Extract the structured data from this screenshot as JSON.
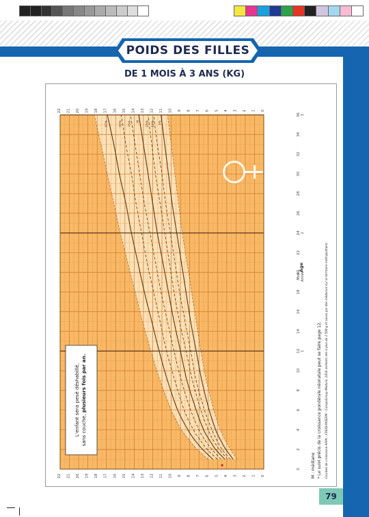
{
  "header": {
    "title": "POIDS DES FILLES",
    "subtitle": "DE 1 MOIS À 3 ANS (KG)",
    "colors": {
      "blue": "#1565b0",
      "navy": "#1d2a52",
      "chart_bg": "#f9b865",
      "curve_band": "#fde7c6",
      "teal": "#7ec9b5"
    }
  },
  "color_strips": {
    "left": [
      "#222222",
      "#222222",
      "#333333",
      "#555555",
      "#777777",
      "#888888",
      "#999999",
      "#aaaaaa",
      "#bbbbbb",
      "#cccccc",
      "#dddddd",
      "#ffffff"
    ],
    "right": [
      "#f5e642",
      "#e8358f",
      "#1aa0dc",
      "#1f3b94",
      "#2ca24a",
      "#e53524",
      "#222222",
      "#d1c6e0",
      "#a5d6ef",
      "#f7bcd4",
      "#ffffff"
    ]
  },
  "chart": {
    "note_line1": "L'enfant sera pesé déshabillé,",
    "note_line2_plain": "sans couche, ",
    "note_line2_bold": "plusieurs fois par an.",
    "legend_median": "M : médiane",
    "legend_footnote": "* Le suivi précis de la croissance pondérale néonatale peut se faire page 12.",
    "source": "Courbes de croissance AFPA – CRESS/INSERM – CompuGroup Medical, 2018 (enfants nés à plus de 2 500 g et suivis par des médecins sur le territoire métropolitain).",
    "axis_label": "Âge",
    "axis_sub_mois": "Mois",
    "axis_sub_annee": "Année",
    "female_symbol": "female-symbol"
  },
  "chart_data": {
    "type": "line",
    "x_label": "Âge",
    "x_unit_primary": "Mois",
    "x_unit_secondary": "Année",
    "y_label": "",
    "x_ticks": [
      0,
      2,
      4,
      6,
      8,
      10,
      12,
      14,
      16,
      18,
      20,
      22,
      24,
      26,
      28,
      30,
      32,
      34,
      36
    ],
    "x_year_ticks": [
      {
        "month": 12,
        "label": "1"
      },
      {
        "month": 24,
        "label": "2"
      },
      {
        "month": 36,
        "label": "3"
      }
    ],
    "y_ticks": [
      0,
      1,
      2,
      3,
      4,
      5,
      6,
      7,
      8,
      9,
      10,
      11,
      12,
      13,
      14,
      15,
      16,
      17,
      18,
      19,
      20,
      21,
      22
    ],
    "xlim": [
      0,
      36
    ],
    "ylim": [
      0,
      22
    ],
    "x": [
      1,
      2,
      3,
      4,
      6,
      9,
      12,
      15,
      18,
      21,
      24,
      27,
      30,
      33,
      36
    ],
    "series": [
      {
        "name": "3%",
        "values": [
          3.3,
          4.1,
          4.7,
          5.2,
          5.9,
          6.7,
          7.3,
          7.9,
          8.4,
          8.9,
          9.4,
          9.9,
          10.3,
          10.7,
          11.1
        ]
      },
      {
        "name": "10%",
        "values": [
          3.6,
          4.5,
          5.1,
          5.6,
          6.4,
          7.3,
          7.9,
          8.5,
          9.1,
          9.6,
          10.1,
          10.6,
          11.0,
          11.5,
          11.9
        ]
      },
      {
        "name": "25%",
        "values": [
          3.9,
          4.8,
          5.5,
          6.0,
          6.8,
          7.7,
          8.4,
          9.1,
          9.7,
          10.2,
          10.7,
          11.2,
          11.7,
          12.1,
          12.5
        ]
      },
      {
        "name": "M",
        "values": [
          4.2,
          5.2,
          5.9,
          6.5,
          7.3,
          8.3,
          9.0,
          9.7,
          10.3,
          10.9,
          11.5,
          12.0,
          12.5,
          13.0,
          13.5
        ]
      },
      {
        "name": "75%",
        "values": [
          4.6,
          5.6,
          6.4,
          7.0,
          7.9,
          8.9,
          9.7,
          10.4,
          11.1,
          11.7,
          12.3,
          12.9,
          13.4,
          13.9,
          14.4
        ]
      },
      {
        "name": "90%",
        "values": [
          5.0,
          6.1,
          6.9,
          7.6,
          8.6,
          9.6,
          10.5,
          11.2,
          11.9,
          12.6,
          13.2,
          13.8,
          14.3,
          14.9,
          15.4
        ]
      },
      {
        "name": "97%",
        "values": [
          5.5,
          6.6,
          7.5,
          8.2,
          9.3,
          10.4,
          11.3,
          12.1,
          12.9,
          13.6,
          14.3,
          14.9,
          15.6,
          16.2,
          16.9
        ]
      }
    ],
    "outer_bounds": [
      {
        "name": "",
        "values": [
          2.9,
          3.6,
          4.2,
          4.7,
          5.4,
          6.2,
          6.8,
          7.3,
          7.8,
          8.3,
          8.8,
          9.2,
          9.6,
          10.0,
          10.4
        ]
      },
      {
        "name": "",
        "values": [
          6.0,
          7.2,
          8.1,
          8.9,
          10.0,
          11.2,
          12.2,
          13.1,
          13.9,
          14.7,
          15.5,
          16.2,
          16.9,
          17.6,
          18.3
        ]
      }
    ],
    "grid": true
  },
  "page": {
    "number": "79"
  }
}
